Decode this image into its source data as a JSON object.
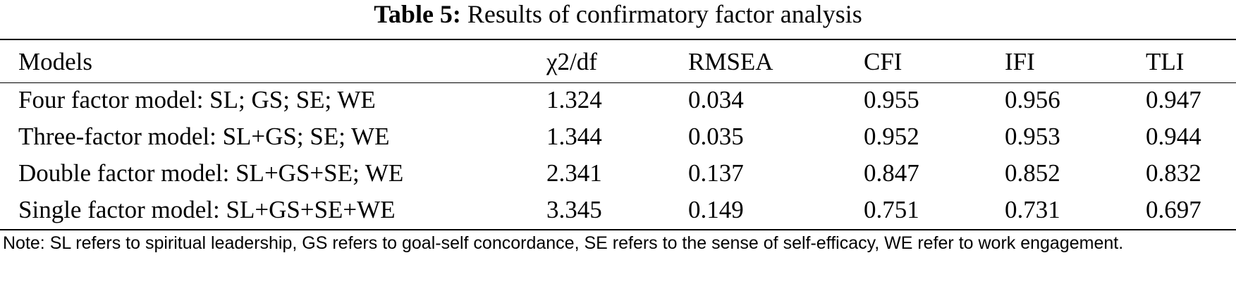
{
  "table": {
    "caption_label": "Table 5:",
    "caption_text": "Results of confirmatory factor analysis",
    "columns": [
      "Models",
      "χ2/df",
      "RMSEA",
      "CFI",
      "IFI",
      "TLI"
    ],
    "rows": [
      [
        "Four factor model: SL; GS; SE; WE",
        "1.324",
        "0.034",
        "0.955",
        "0.956",
        "0.947"
      ],
      [
        "Three-factor model: SL+GS; SE; WE",
        "1.344",
        "0.035",
        "0.952",
        "0.953",
        "0.944"
      ],
      [
        "Double factor model: SL+GS+SE; WE",
        "2.341",
        "0.137",
        "0.847",
        "0.852",
        "0.832"
      ],
      [
        "Single factor model: SL+GS+SE+WE",
        "3.345",
        "0.149",
        "0.751",
        "0.731",
        "0.697"
      ]
    ],
    "note": "Note: SL refers to spiritual leadership, GS refers to goal-self concordance, SE refers to the sense of self-efficacy, WE refer to work engagement."
  }
}
